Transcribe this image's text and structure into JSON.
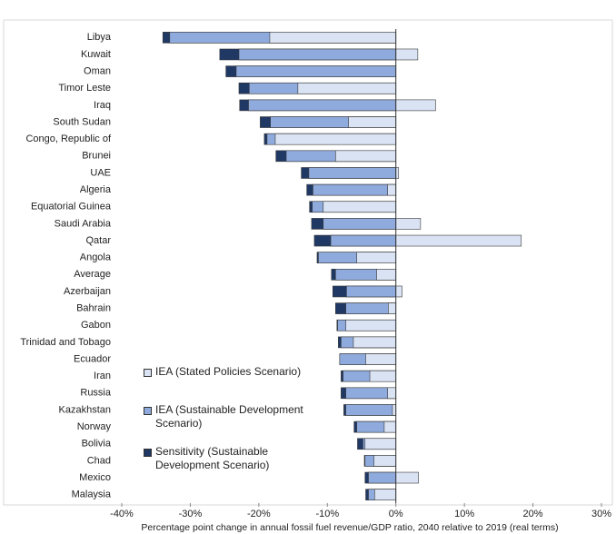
{
  "chart_data": {
    "type": "bar",
    "orientation": "horizontal",
    "x_label": "Percentage point change in annual fossil fuel revenue/GDP ratio, 2040 relative to 2019 (real terms)",
    "categories": [
      "Libya",
      "Kuwait",
      "Oman",
      "Timor Leste",
      "Iraq",
      "South Sudan",
      "Congo, Republic of",
      "Brunei",
      "UAE",
      "Algeria",
      "Equatorial Guinea",
      "Saudi Arabia",
      "Qatar",
      "Angola",
      "Average",
      "Azerbaijan",
      "Bahrain",
      "Gabon",
      "Trinidad and Tobago",
      "Ecuador",
      "Iran",
      "Russia",
      "Kazakhstan",
      "Norway",
      "Bolivia",
      "Chad",
      "Mexico",
      "Malaysia"
    ],
    "series": [
      {
        "name": "IEA (Stated Policies Scenario)",
        "color": "#dae3f3",
        "values": [
          -18.4,
          3.2,
          null,
          -14.3,
          5.8,
          -6.9,
          -17.6,
          -8.8,
          0.4,
          -1.2,
          -10.6,
          3.6,
          18.3,
          -5.7,
          -2.8,
          0.9,
          -1.1,
          -7.3,
          -6.2,
          -4.4,
          -3.8,
          -1.2,
          -0.5,
          -1.7,
          -4.5,
          -3.2,
          3.3,
          -3.1
        ]
      },
      {
        "name": "IEA (Sustainable Development Scenario)",
        "color": "#8faadc",
        "values": [
          -33.0,
          -22.9,
          -23.3,
          -21.4,
          -21.5,
          -18.3,
          -18.8,
          -16.0,
          -12.7,
          -12.1,
          -12.2,
          -10.6,
          -9.5,
          -11.3,
          -8.8,
          -7.2,
          -7.3,
          -8.5,
          -8.0,
          -8.2,
          -7.7,
          -7.3,
          -7.3,
          -5.7,
          -4.8,
          -4.5,
          -4.0,
          -4.0
        ]
      },
      {
        "name": "Sensitivity (Sustainable Development Scenario)",
        "color": "#1f3864",
        "values": [
          -34.0,
          -25.7,
          -24.8,
          -22.9,
          -22.8,
          -19.8,
          -19.2,
          -17.5,
          -13.8,
          -13.0,
          -12.6,
          -12.3,
          -11.9,
          -11.5,
          -9.4,
          -9.2,
          -8.8,
          -8.6,
          -8.4,
          -8.2,
          -8.0,
          -8.0,
          -7.6,
          -6.1,
          -5.6,
          -4.6,
          -4.5,
          -4.4
        ]
      }
    ],
    "xlim": [
      -40,
      30
    ],
    "xticks": [
      {
        "value": -40,
        "label": "-40%"
      },
      {
        "value": -30,
        "label": "-30%"
      },
      {
        "value": -20,
        "label": "-20%"
      },
      {
        "value": -10,
        "label": "-10%"
      },
      {
        "value": 0,
        "label": "0%"
      },
      {
        "value": 10,
        "label": "10%"
      },
      {
        "value": 20,
        "label": "20%"
      },
      {
        "value": 30,
        "label": "30%"
      }
    ],
    "legend": "lower left"
  }
}
